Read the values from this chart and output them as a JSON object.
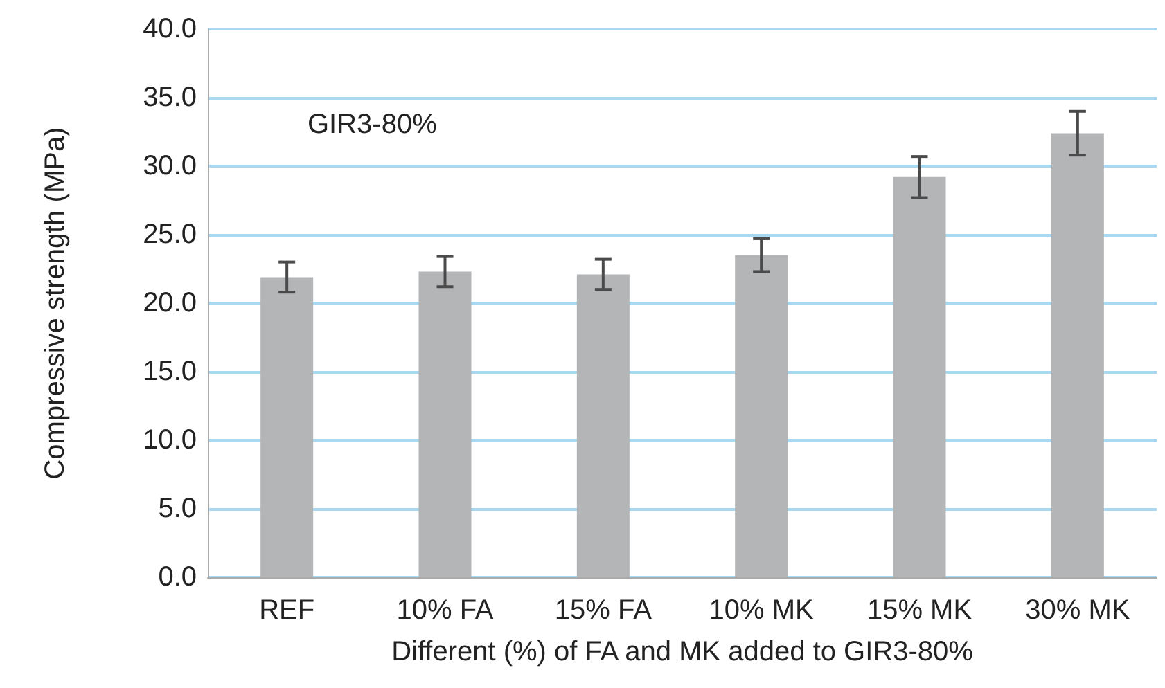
{
  "chart_data": {
    "type": "bar",
    "categories": [
      "REF",
      "10% FA",
      "15% FA",
      "10% MK",
      "15% MK",
      "30% MK"
    ],
    "values": [
      21.9,
      22.3,
      22.1,
      23.5,
      29.2,
      32.4
    ],
    "errors": [
      1.1,
      1.1,
      1.1,
      1.2,
      1.5,
      1.6
    ],
    "color": "#b3b5b7",
    "xlabel": "Different (%) of FA and MK added to GIR3-80%",
    "ylabel": "Compressive strength (MPa)",
    "annotations": [
      "GIR3-80%"
    ],
    "ylim": [
      0,
      40
    ],
    "yticks": [
      {
        "value": 0,
        "label": "0.0"
      },
      {
        "value": 5,
        "label": "5.0"
      },
      {
        "value": 10,
        "label": "10.0"
      },
      {
        "value": 15,
        "label": "15.0"
      },
      {
        "value": 20,
        "label": "20.0"
      },
      {
        "value": 25,
        "label": "25.0"
      },
      {
        "value": 30,
        "label": "30.0"
      },
      {
        "value": 35,
        "label": "35.0"
      },
      {
        "value": 40,
        "label": "40.0"
      }
    ],
    "grid": true
  }
}
